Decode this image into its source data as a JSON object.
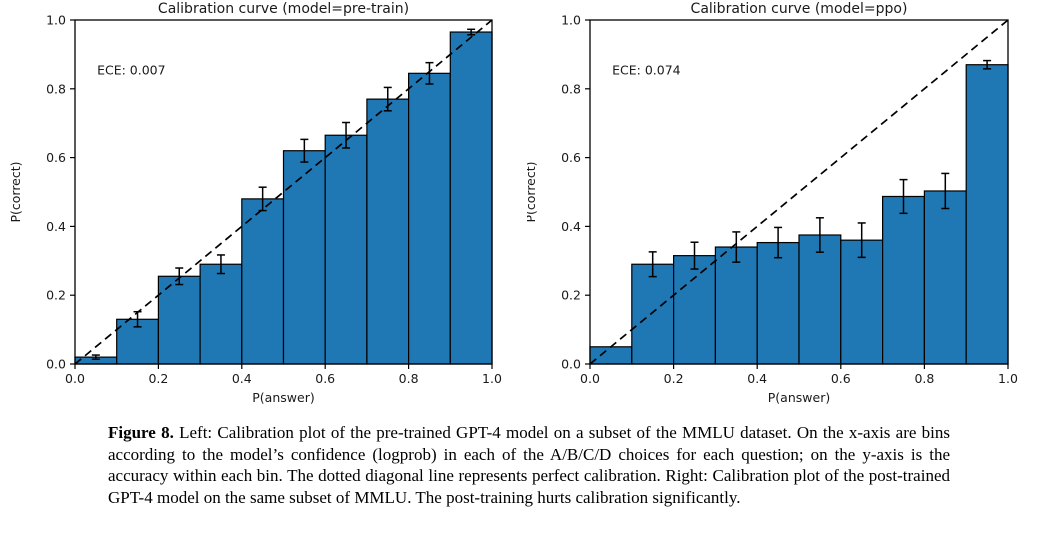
{
  "figure": {
    "caption_label": "Figure 8.",
    "caption_text": " Left: Calibration plot of the pre-trained GPT-4 model on a subset of the MMLU dataset. On the x-axis are bins according to the model’s confidence (logprob) in each of the A/B/C/D choices for each question; on the y-axis is the accuracy within each bin. The dotted diagonal line represents perfect calibration. Right: Calibration plot of the post-trained GPT-4 model on the same subset of MMLU. The post-training hurts calibration significantly."
  },
  "colors": {
    "bar_fill": "#1f77b4",
    "bar_edge": "#000000",
    "diagonal": "#000000",
    "frame": "#000000",
    "text": "#1a1a1a"
  },
  "chart_data": [
    {
      "type": "bar",
      "title": "Calibration curve (model=pre-train)",
      "annotation": "ECE: 0.007",
      "xlabel": "P(answer)",
      "ylabel": "P(correct)",
      "xlim": [
        0,
        1
      ],
      "ylim": [
        0,
        1
      ],
      "x_ticks": [
        0.0,
        0.2,
        0.4,
        0.6,
        0.8,
        1.0
      ],
      "y_ticks": [
        0.0,
        0.2,
        0.4,
        0.6,
        0.8,
        1.0
      ],
      "x_tick_labels": [
        "0.0",
        "0.2",
        "0.4",
        "0.6",
        "0.8",
        "1.0"
      ],
      "y_tick_labels": [
        "0.0",
        "0.2",
        "0.4",
        "0.6",
        "0.8",
        "1.0"
      ],
      "bin_width": 0.1,
      "bin_centers": [
        0.05,
        0.15,
        0.25,
        0.35,
        0.45,
        0.55,
        0.65,
        0.75,
        0.85,
        0.95
      ],
      "values": [
        0.02,
        0.13,
        0.255,
        0.29,
        0.48,
        0.62,
        0.665,
        0.77,
        0.845,
        0.965
      ],
      "errors": [
        0.006,
        0.022,
        0.024,
        0.027,
        0.034,
        0.033,
        0.037,
        0.034,
        0.031,
        0.008
      ],
      "diagonal": true,
      "grid": false,
      "legend": null
    },
    {
      "type": "bar",
      "title": "Calibration curve (model=ppo)",
      "annotation": "ECE: 0.074",
      "xlabel": "P(answer)",
      "ylabel": "P(correct)",
      "xlim": [
        0,
        1
      ],
      "ylim": [
        0,
        1
      ],
      "x_ticks": [
        0.0,
        0.2,
        0.4,
        0.6,
        0.8,
        1.0
      ],
      "y_ticks": [
        0.0,
        0.2,
        0.4,
        0.6,
        0.8,
        1.0
      ],
      "x_tick_labels": [
        "0.0",
        "0.2",
        "0.4",
        "0.6",
        "0.8",
        "1.0"
      ],
      "y_tick_labels": [
        "0.0",
        "0.2",
        "0.4",
        "0.6",
        "0.8",
        "1.0"
      ],
      "bin_width": 0.1,
      "bin_centers": [
        0.05,
        0.15,
        0.25,
        0.35,
        0.45,
        0.55,
        0.65,
        0.75,
        0.85,
        0.95
      ],
      "values": [
        0.05,
        0.29,
        0.315,
        0.34,
        0.353,
        0.375,
        0.36,
        0.487,
        0.503,
        0.87
      ],
      "errors": [
        0,
        0.036,
        0.039,
        0.044,
        0.044,
        0.05,
        0.05,
        0.049,
        0.051,
        0.012
      ],
      "diagonal": true,
      "grid": false,
      "legend": null
    }
  ]
}
